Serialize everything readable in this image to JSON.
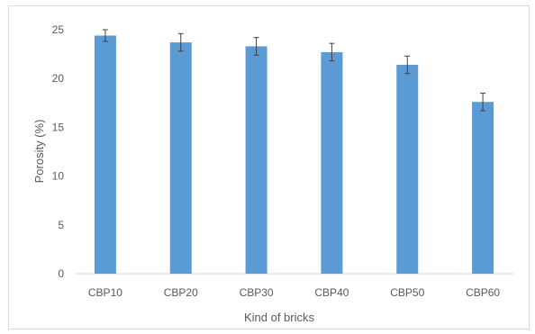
{
  "chart_data": {
    "type": "bar",
    "xlabel": "Kind of bricks",
    "ylabel": "Porosity (%)",
    "categories": [
      "CBP10",
      "CBP20",
      "CBP30",
      "CBP40",
      "CBP50",
      "CBP60"
    ],
    "values": [
      24.4,
      23.7,
      23.3,
      22.7,
      21.4,
      17.6
    ],
    "errors": [
      0.6,
      0.9,
      0.9,
      0.9,
      0.9,
      0.9
    ],
    "ylim": [
      0,
      25
    ],
    "yticks": [
      0,
      5,
      10,
      15,
      20,
      25
    ],
    "grid": false,
    "legend": "none",
    "bar_color": "#5b9bd5",
    "error_color": "#404040",
    "axis_color": "#d9d9d9"
  }
}
